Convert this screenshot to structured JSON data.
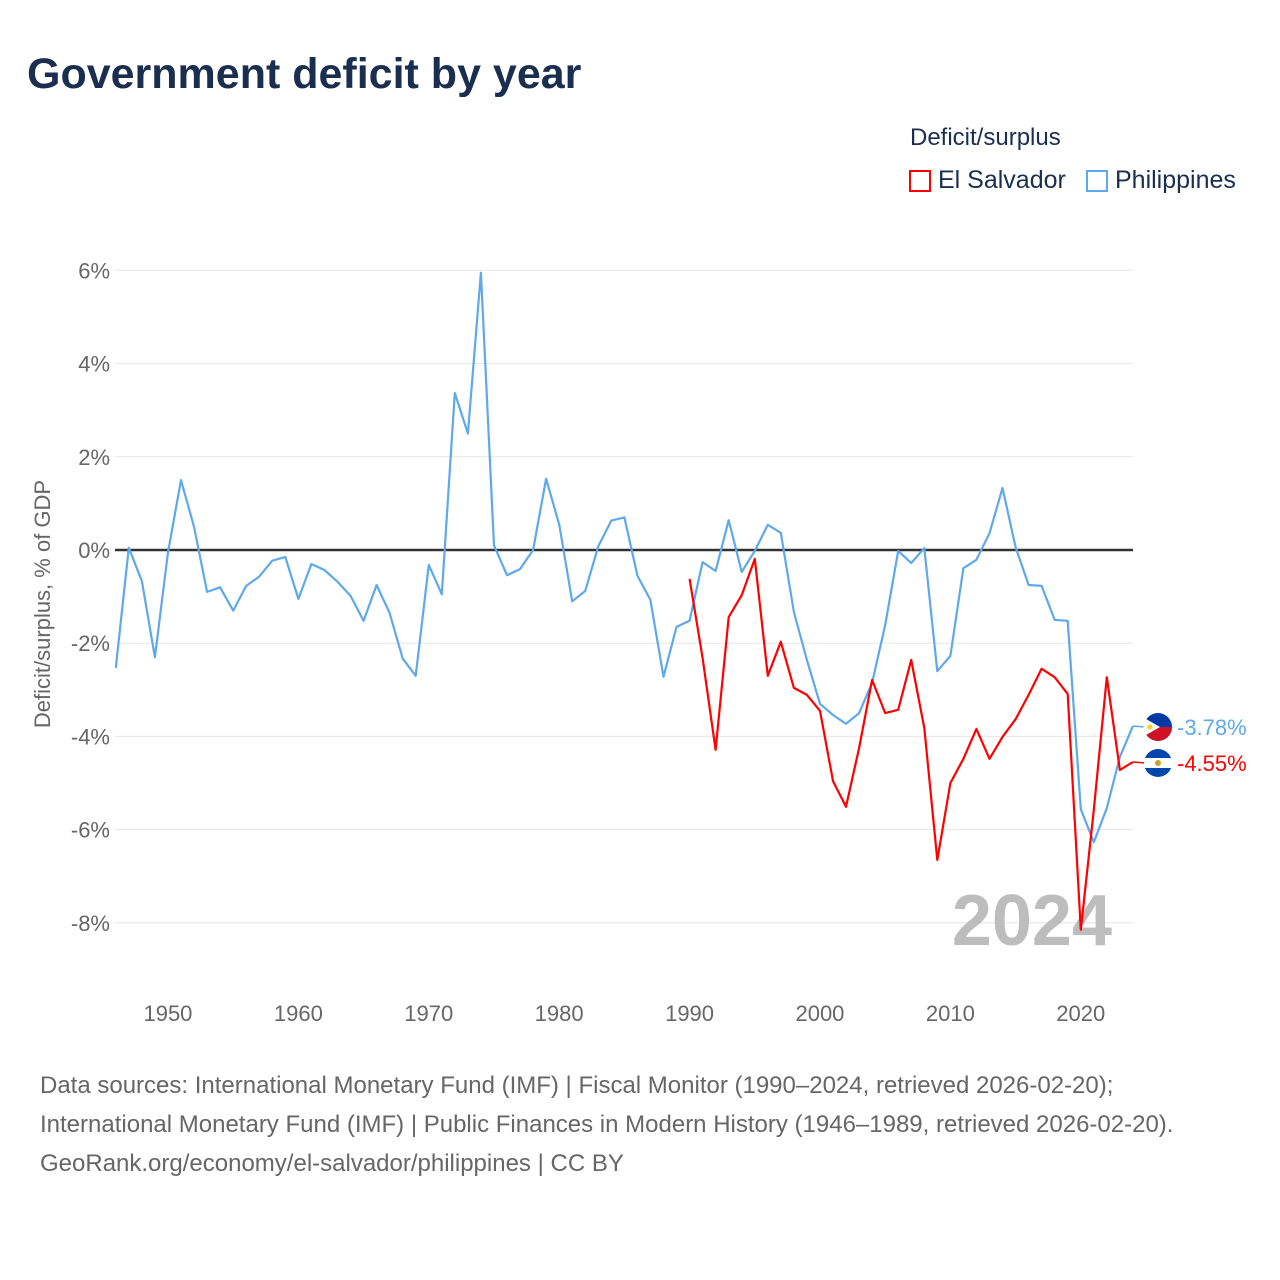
{
  "chart_data": {
    "type": "line",
    "title": "Government deficit by year",
    "ylabel": "Deficit/surplus, % of GDP",
    "xlabel": "",
    "xlim": [
      1946,
      2024
    ],
    "ylim": [
      -9,
      6.5
    ],
    "yticks": [
      6,
      4,
      2,
      0,
      -2,
      -4,
      -6,
      -8
    ],
    "ytick_labels": [
      "6%",
      "4%",
      "2%",
      "0%",
      "-2%",
      "-4%",
      "-6%",
      "-8%"
    ],
    "xticks": [
      1950,
      1960,
      1970,
      1980,
      1990,
      2000,
      2010,
      2020
    ],
    "xtick_labels": [
      "1950",
      "1960",
      "1970",
      "1980",
      "1990",
      "2000",
      "2010",
      "2020"
    ],
    "grid": true,
    "legend_title": "Deficit/surplus",
    "legend_placement": "top-right",
    "year_watermark": "2024",
    "series": [
      {
        "name": "El Salvador",
        "color": "#ff0000",
        "end_label": "-4.55%",
        "start_year": 1990,
        "values": [
          -0.62,
          -2.32,
          -4.29,
          -1.44,
          -0.97,
          -0.19,
          -2.7,
          -1.97,
          -2.96,
          -3.11,
          -3.45,
          -4.96,
          -5.51,
          -4.25,
          -2.79,
          -3.5,
          -3.43,
          -2.36,
          -3.82,
          -6.65,
          -5.0,
          -4.48,
          -3.84,
          -4.48,
          -4.01,
          -3.63,
          -3.11,
          -2.55,
          -2.73,
          -3.09,
          -8.15,
          -5.58,
          -2.73,
          -4.72,
          -4.55
        ]
      },
      {
        "name": "Philippines",
        "color": "#5ea8ec",
        "end_label": "-3.78%",
        "start_year": 1946,
        "values": [
          -2.53,
          0.05,
          -0.67,
          -2.3,
          -0.05,
          1.5,
          0.5,
          -0.9,
          -0.8,
          -1.3,
          -0.77,
          -0.57,
          -0.23,
          -0.15,
          -1.05,
          -0.3,
          -0.43,
          -0.68,
          -0.98,
          -1.52,
          -0.75,
          -1.35,
          -2.33,
          -2.7,
          -0.32,
          -0.95,
          3.37,
          2.5,
          5.95,
          0.1,
          -0.54,
          -0.41,
          0.0,
          1.53,
          0.55,
          -1.1,
          -0.88,
          0.08,
          0.63,
          0.7,
          -0.55,
          -1.07,
          -2.72,
          -1.65,
          -1.52,
          -0.26,
          -0.45,
          0.64,
          -0.47,
          -0.02,
          0.54,
          0.37,
          -1.33,
          -2.36,
          -3.3,
          -3.54,
          -3.73,
          -3.5,
          -2.85,
          -1.61,
          -0.02,
          -0.28,
          0.04,
          -2.6,
          -2.27,
          -0.39,
          -0.21,
          0.36,
          1.33,
          0.06,
          -0.75,
          -0.77,
          -1.5,
          -1.52,
          -5.56,
          -6.27,
          -5.54,
          -4.44,
          -3.78
        ]
      }
    ]
  },
  "footer": {
    "sources": "Data sources: International Monetary Fund (IMF) | Fiscal Monitor (1990–2024, retrieved 2026-02-20); International Monetary Fund (IMF) | Public Finances in Modern History (1946–1989, retrieved 2026-02-20).",
    "credit": "GeoRank.org/economy/el-salvador/philippines | CC BY"
  }
}
